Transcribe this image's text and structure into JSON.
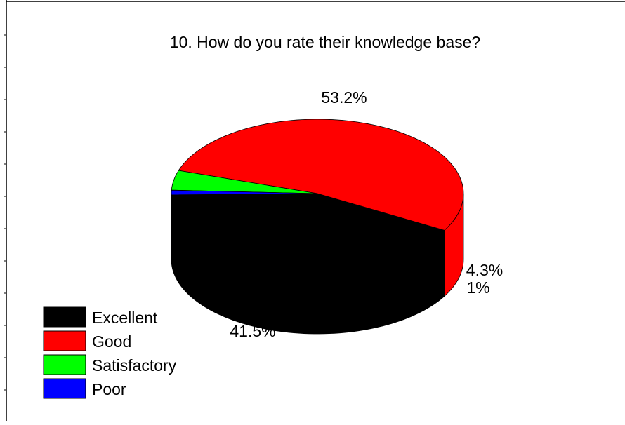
{
  "chart_data": {
    "type": "pie",
    "title": "10. How do you rate their knowledge base?",
    "categories": [
      "Excellent",
      "Good",
      "Satisfactory",
      "Poor"
    ],
    "values": [
      41.5,
      53.2,
      4.3,
      1
    ],
    "value_labels": [
      "41.5%",
      "53.2%",
      "4.3%",
      "1%"
    ],
    "colors": [
      "#000000",
      "#ff0000",
      "#00ff00",
      "#0000ff"
    ],
    "legend": {
      "position": "bottom-left",
      "entries": [
        "Excellent",
        "Good",
        "Satisfactory",
        "Poor"
      ]
    },
    "style": "3d-tilted"
  }
}
